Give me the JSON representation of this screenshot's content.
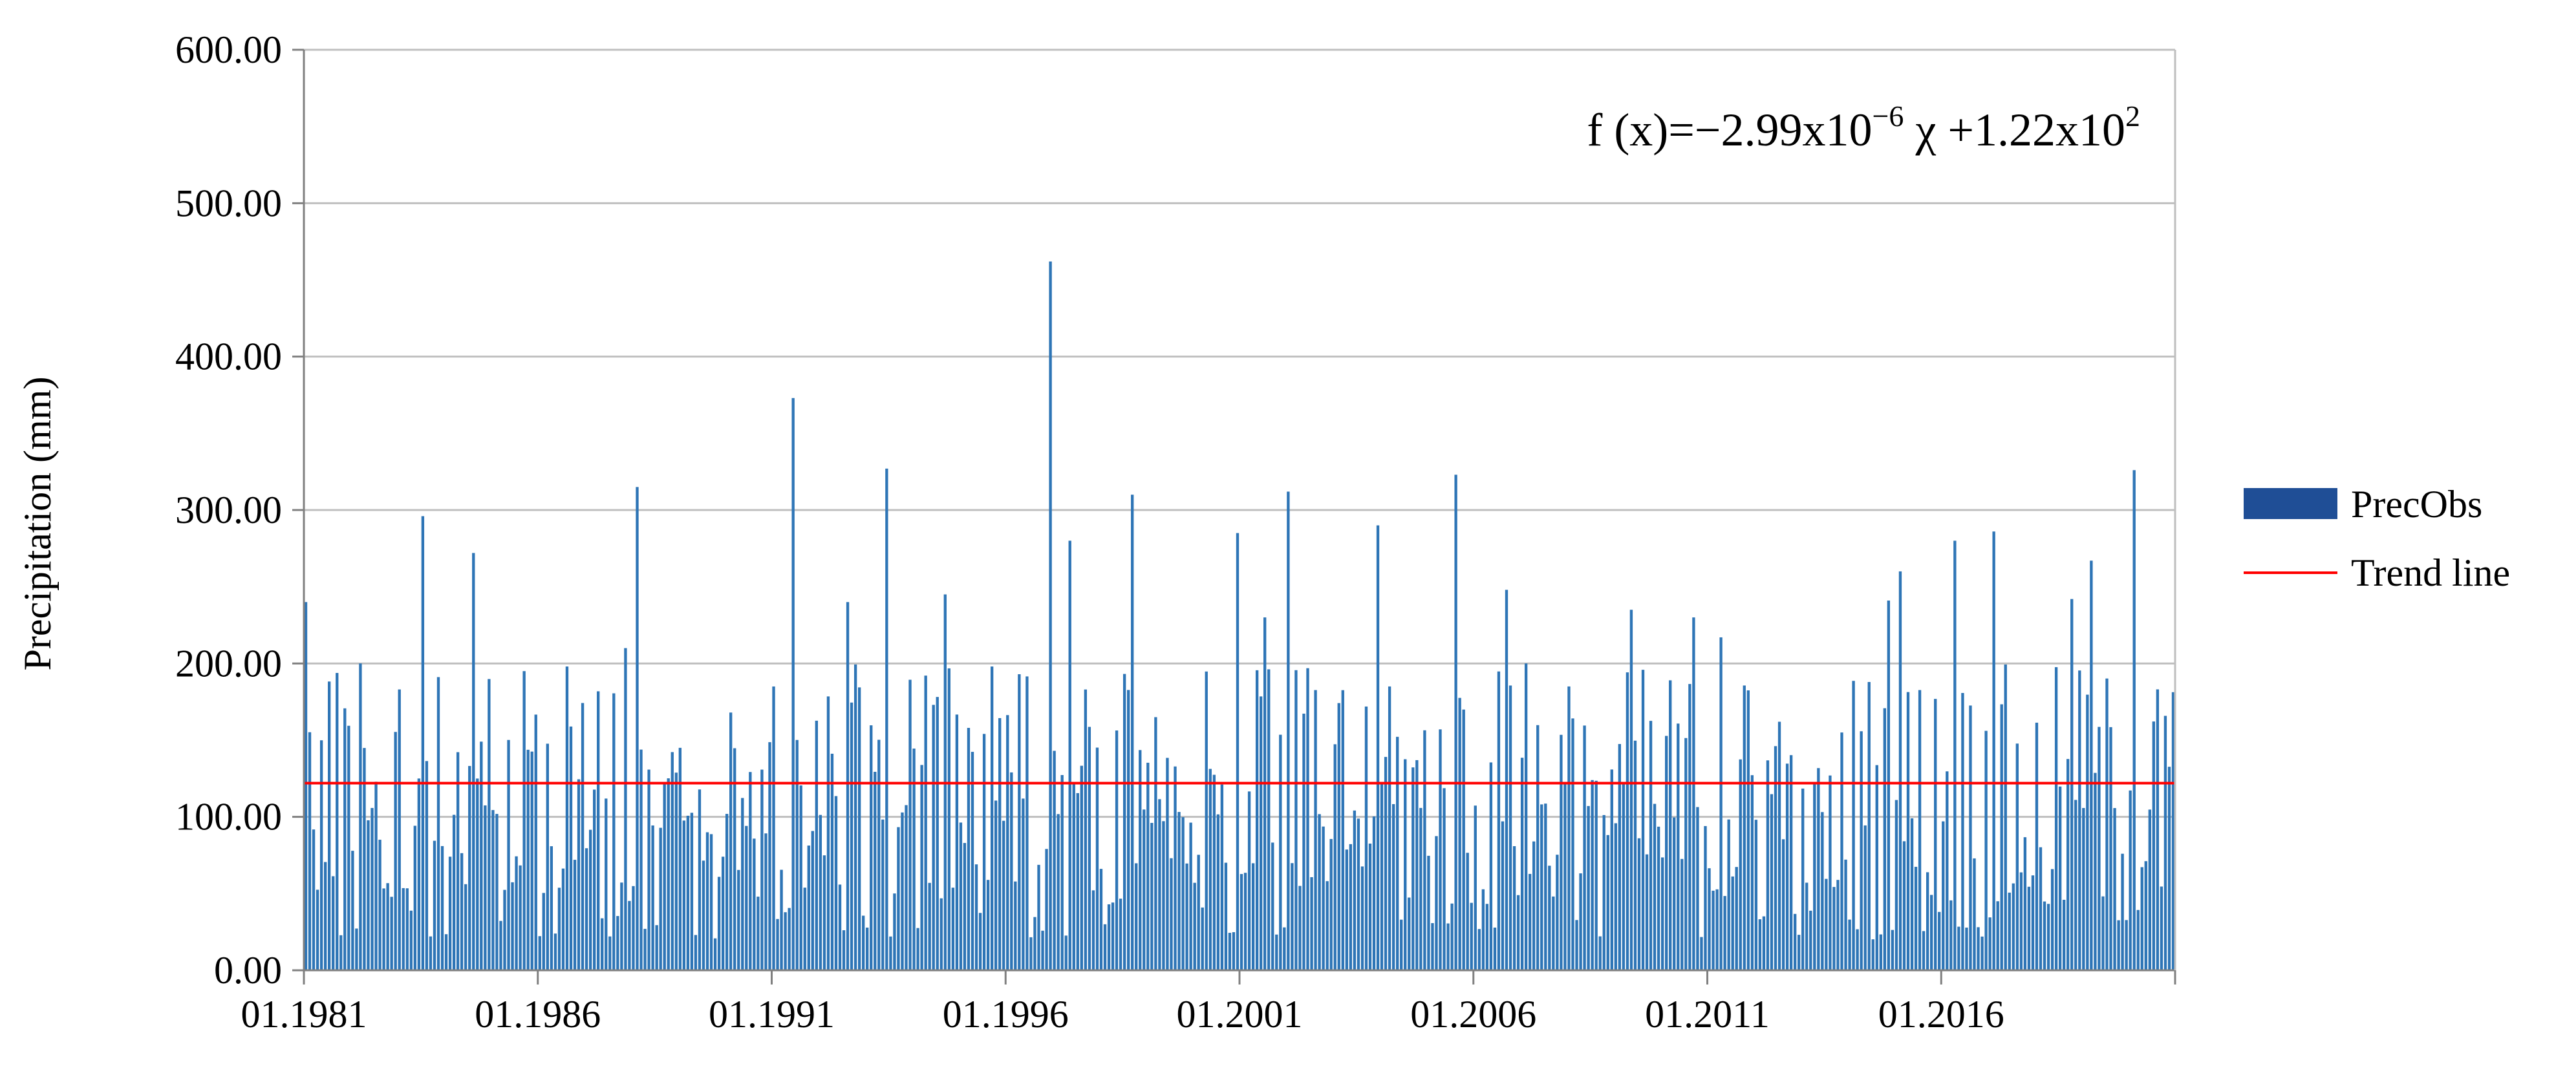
{
  "chart_data": {
    "type": "bar",
    "ylabel": "Precipitation (mm)",
    "ylim": [
      0,
      600
    ],
    "yticks": [
      "0.00",
      "100.00",
      "200.00",
      "300.00",
      "400.00",
      "500.00",
      "600.00"
    ],
    "x_start": "01.1981",
    "x_end": "12.2020",
    "xticks": [
      "01.1981",
      "01.1986",
      "01.1991",
      "01.1996",
      "01.2001",
      "01.2006",
      "01.2011",
      "01.2016"
    ],
    "grid": true,
    "legend_position": "right",
    "colors": {
      "bars": "#2e75b6",
      "legend_swatch": "#1f4e96",
      "trend": "#ff0000",
      "grid": "#bfbfbf"
    },
    "series": [
      {
        "name": "PrecObs",
        "type": "bar",
        "annual_peaks": [
          {
            "year": 1981,
            "value": 240
          },
          {
            "year": 1982,
            "value": 200
          },
          {
            "year": 1983,
            "value": 296
          },
          {
            "year": 1984,
            "value": 272
          },
          {
            "year": 1985,
            "value": 195
          },
          {
            "year": 1986,
            "value": 198
          },
          {
            "year": 1987,
            "value": 210
          },
          {
            "year": 1988,
            "value": 315
          },
          {
            "year": 1989,
            "value": 145
          },
          {
            "year": 1990,
            "value": 168
          },
          {
            "year": 1991,
            "value": 373
          },
          {
            "year": 1992,
            "value": 240
          },
          {
            "year": 1993,
            "value": 327
          },
          {
            "year": 1994,
            "value": 245
          },
          {
            "year": 1995,
            "value": 198
          },
          {
            "year": 1996,
            "value": 462
          },
          {
            "year": 1997,
            "value": 280
          },
          {
            "year": 1998,
            "value": 310
          },
          {
            "year": 1999,
            "value": 165
          },
          {
            "year": 2000,
            "value": 285
          },
          {
            "year": 2001,
            "value": 230
          },
          {
            "year": 2002,
            "value": 312
          },
          {
            "year": 2003,
            "value": 290
          },
          {
            "year": 2004,
            "value": 185
          },
          {
            "year": 2005,
            "value": 323
          },
          {
            "year": 2006,
            "value": 248
          },
          {
            "year": 2007,
            "value": 200
          },
          {
            "year": 2008,
            "value": 185
          },
          {
            "year": 2009,
            "value": 235
          },
          {
            "year": 2010,
            "value": 230
          },
          {
            "year": 2011,
            "value": 217
          },
          {
            "year": 2012,
            "value": 162
          },
          {
            "year": 2013,
            "value": 155
          },
          {
            "year": 2014,
            "value": 241
          },
          {
            "year": 2015,
            "value": 260
          },
          {
            "year": 2016,
            "value": 280
          },
          {
            "year": 2017,
            "value": 286
          },
          {
            "year": 2018,
            "value": 242
          },
          {
            "year": 2019,
            "value": 267
          },
          {
            "year": 2020,
            "value": 326
          }
        ],
        "typical_range": [
          20,
          200
        ]
      },
      {
        "name": "Trend line",
        "type": "line",
        "y": [
          122,
          122
        ]
      }
    ],
    "annotation": {
      "prefix": "f (x)=−2.99x10",
      "exp1": "−6",
      "middle": " χ +1.22x10",
      "exp2": "2"
    }
  }
}
